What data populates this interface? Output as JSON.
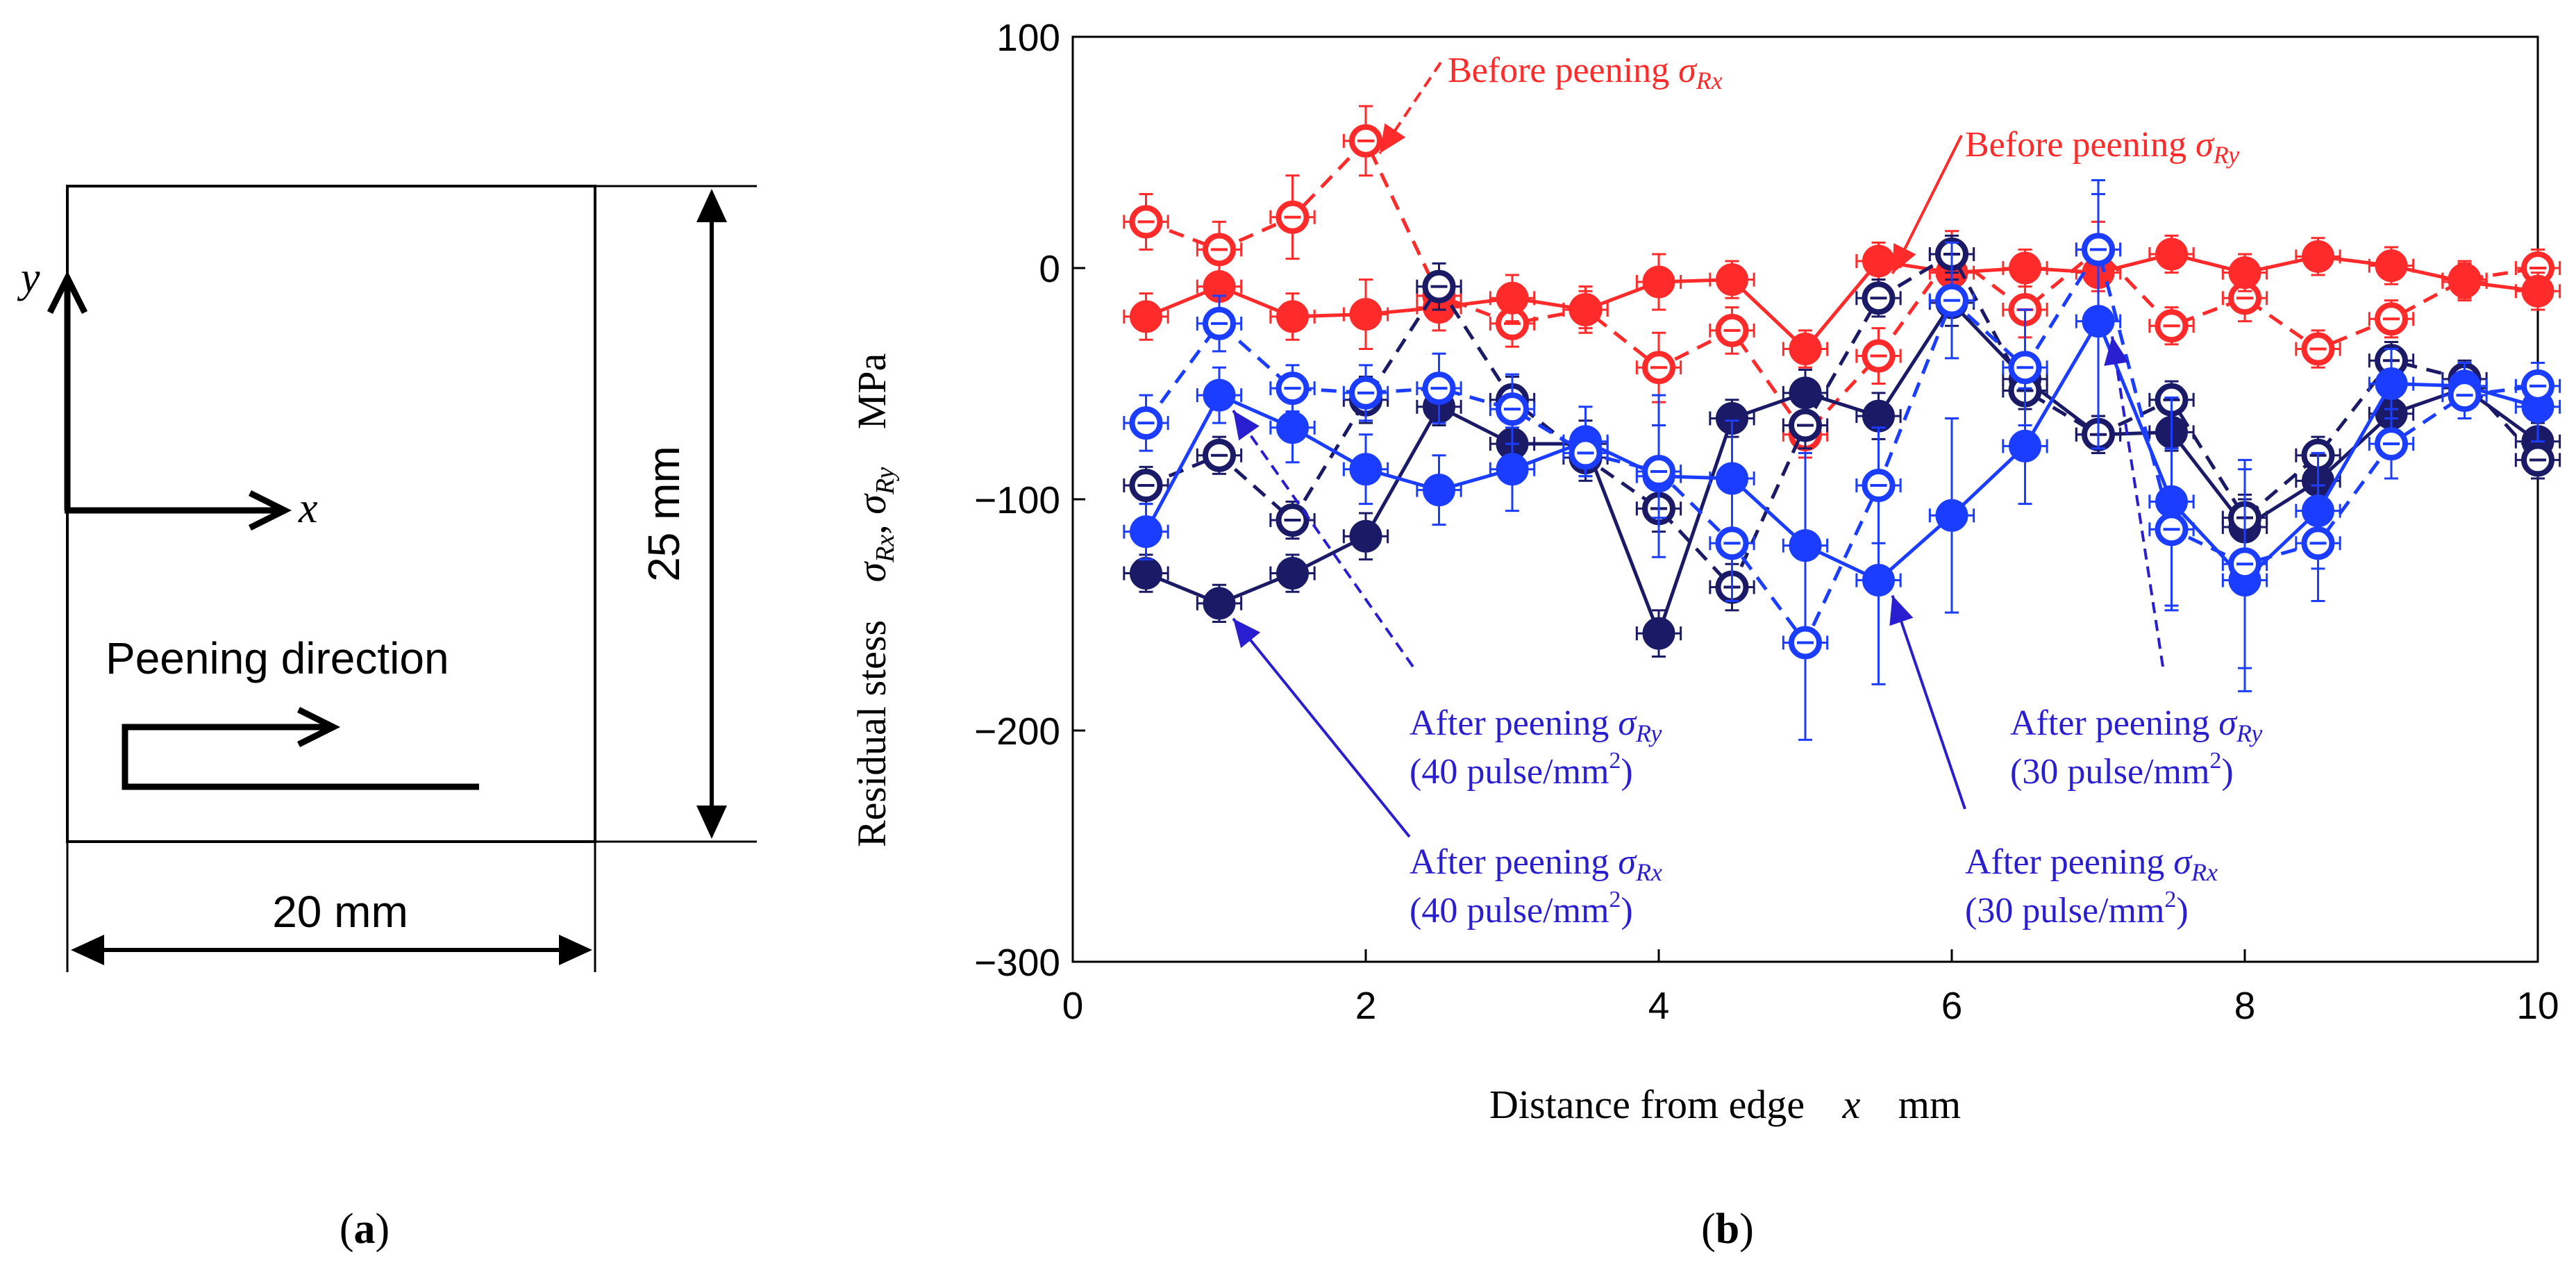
{
  "panel_a": {
    "label_letter": "a",
    "axis_y": "y",
    "axis_x": "x",
    "peening_label": "Peening direction",
    "width_label": "20 mm",
    "height_label": "25 mm"
  },
  "panel_b": {
    "label_letter": "b"
  },
  "colors": {
    "before_rx": "#ff2a2a",
    "before_ry": "#ff2a2a",
    "after40_rx": "#1a1a66",
    "after40_ry": "#1a1a66",
    "after30_rx": "#1a3dff",
    "after30_ry": "#1a3dff",
    "ann_red": "#ff2a2a",
    "ann_blue": "#2a1fd0"
  },
  "chart_data": {
    "type": "line",
    "title": "",
    "xlabel": "Distance from edge",
    "xlabel_var": "x",
    "xlabel_unit": "mm",
    "ylabel": "Residual stess",
    "ylabel_sym1": "σ",
    "ylabel_sub1": "Rx",
    "ylabel_sym2": "σ",
    "ylabel_sub2": "Ry",
    "ylabel_unit": "MPa",
    "xlim": [
      0,
      10
    ],
    "ylim": [
      -300,
      100
    ],
    "xticks": [
      "0",
      "2",
      "4",
      "6",
      "8",
      "10"
    ],
    "yticks": [
      "100",
      "0",
      "−100",
      "−200",
      "−300"
    ],
    "x": [
      0.5,
      1.0,
      1.5,
      2.0,
      2.5,
      3.0,
      3.5,
      4.0,
      4.5,
      5.0,
      5.5,
      6.0,
      6.5,
      7.0,
      7.5,
      8.0,
      8.5,
      9.0,
      9.5,
      10.0
    ],
    "series": [
      {
        "name": "Before peening σRx",
        "color_key": "before_rx",
        "dash": true,
        "filled": false,
        "values": [
          20,
          8,
          22,
          55,
          -12,
          -24,
          -18,
          -43,
          -27,
          -72,
          -38,
          6,
          -18,
          8,
          -25,
          -13,
          -35,
          -22,
          -5,
          0
        ],
        "yerr": [
          12,
          12,
          18,
          15,
          10,
          10,
          10,
          15,
          10,
          10,
          12,
          10,
          12,
          12,
          8,
          10,
          8,
          8,
          8,
          8
        ]
      },
      {
        "name": "Before peening σRy",
        "color_key": "before_ry",
        "dash": false,
        "filled": true,
        "values": [
          -21,
          -8,
          -21,
          -20,
          -17,
          -13,
          -18,
          -6,
          -5,
          -35,
          3,
          -2,
          0,
          -2,
          6,
          -2,
          5,
          1,
          -6,
          -10
        ],
        "yerr": [
          10,
          10,
          10,
          15,
          10,
          10,
          8,
          12,
          8,
          8,
          8,
          8,
          8,
          8,
          8,
          8,
          8,
          8,
          8,
          8
        ]
      },
      {
        "name": "After peening σRx (40 pulse/mm2)",
        "color_key": "after40_rx",
        "dash": false,
        "filled": true,
        "values": [
          -132,
          -145,
          -132,
          -116,
          -60,
          -76,
          -76,
          -158,
          -65,
          -54,
          -64,
          -15,
          -48,
          -72,
          -71,
          -112,
          -92,
          -63,
          -52,
          -75
        ],
        "yerr": [
          8,
          8,
          8,
          10,
          8,
          12,
          10,
          10,
          8,
          10,
          10,
          10,
          8,
          8,
          8,
          12,
          8,
          8,
          8,
          8
        ]
      },
      {
        "name": "After peening σRy (40 pulse/mm2)",
        "color_key": "after40_ry",
        "dash": true,
        "filled": false,
        "values": [
          -94,
          -81,
          -109,
          -57,
          -8,
          -57,
          -82,
          -104,
          -138,
          -68,
          -13,
          6,
          -53,
          -72,
          -57,
          -108,
          -81,
          -40,
          -48,
          -83
        ],
        "yerr": [
          8,
          8,
          8,
          10,
          10,
          10,
          10,
          10,
          10,
          10,
          8,
          8,
          8,
          8,
          8,
          10,
          8,
          8,
          8,
          8
        ]
      },
      {
        "name": "After peening σRx (30 pulse/mm2)",
        "color_key": "after30_rx",
        "dash": false,
        "filled": true,
        "values": [
          -114,
          -55,
          -69,
          -87,
          -96,
          -87,
          -75,
          -90,
          -91,
          -120,
          -135,
          -107,
          -77,
          -23,
          -101,
          -135,
          -105,
          -50,
          -51,
          -60
        ],
        "yerr": [
          12,
          12,
          15,
          15,
          15,
          18,
          15,
          35,
          25,
          40,
          45,
          42,
          25,
          55,
          45,
          48,
          25,
          15,
          10,
          15
        ]
      },
      {
        "name": "After peening σRy (30 pulse/mm2)",
        "color_key": "after30_ry",
        "dash": true,
        "filled": false,
        "values": [
          -67,
          -24,
          -52,
          -54,
          -52,
          -61,
          -80,
          -88,
          -119,
          -162,
          -94,
          -14,
          -43,
          8,
          -113,
          -128,
          -119,
          -76,
          -55,
          -51
        ],
        "yerr": [
          12,
          12,
          10,
          12,
          15,
          15,
          10,
          20,
          25,
          42,
          25,
          25,
          25,
          30,
          35,
          45,
          25,
          15,
          10,
          10
        ]
      }
    ],
    "annotations": [
      {
        "key": "before_rx",
        "text": "Before peening ",
        "sym": "σ",
        "sub": "Rx",
        "line2": "",
        "color_key": "ann_red",
        "target_x": 2.0,
        "target_y": 55
      },
      {
        "key": "before_ry",
        "text": "Before peening ",
        "sym": "σ",
        "sub": "Ry",
        "line2": "",
        "color_key": "ann_red",
        "target_x": 5.5,
        "target_y": 3
      },
      {
        "key": "after40_ry",
        "text": "After peening ",
        "sym": "σ",
        "sub": "Ry",
        "line2": "(40 pulse/mm",
        "sup2": "2",
        "line2_end": ")",
        "color_key": "ann_blue",
        "target_x": 1.0,
        "target_y": -55
      },
      {
        "key": "after40_rx",
        "text": "After peening ",
        "sym": "σ",
        "sub": "Rx",
        "line2": "(40 pulse/mm",
        "sup2": "2",
        "line2_end": ")",
        "color_key": "ann_blue",
        "target_x": 1.0,
        "target_y": -145
      },
      {
        "key": "after30_ry",
        "text": "After peening ",
        "sym": "σ",
        "sub": "Ry",
        "line2": "(30 pulse/mm",
        "sup2": "2",
        "line2_end": ")",
        "color_key": "ann_blue",
        "target_x": 7.0,
        "target_y": -23
      },
      {
        "key": "after30_rx",
        "text": "After peening ",
        "sym": "σ",
        "sub": "Rx",
        "line2": "(30 pulse/mm",
        "sup2": "2",
        "line2_end": ")",
        "color_key": "ann_blue",
        "target_x": 5.5,
        "target_y": -135
      }
    ]
  }
}
